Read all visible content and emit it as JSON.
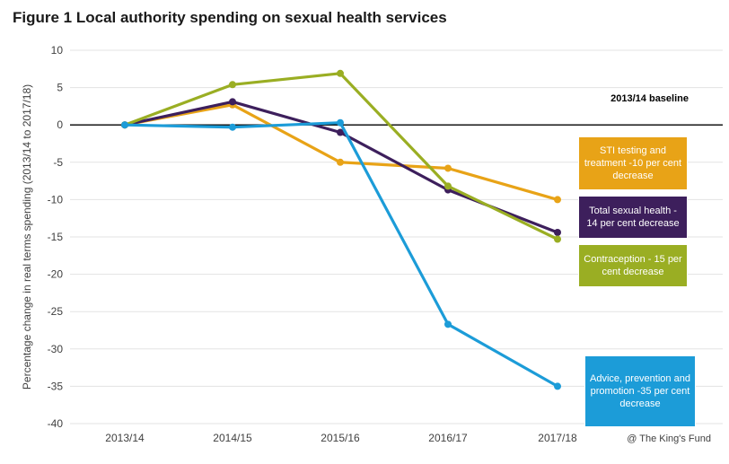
{
  "chart_data": {
    "type": "line",
    "title": "Figure 1 Local authority spending on sexual health services",
    "ylabel": "Percentage change in real terms spending (2013/14 to 2017/18)",
    "xlabel": "",
    "categories": [
      "2013/14",
      "2014/15",
      "2015/16",
      "2016/17",
      "2017/18"
    ],
    "ylim": [
      -40,
      10
    ],
    "yticks": [
      10,
      5,
      0,
      -5,
      -10,
      -15,
      -20,
      -25,
      -30,
      -35,
      -40
    ],
    "grid": "horizontal",
    "baseline_label": "2013/14 baseline",
    "series": [
      {
        "name": "STI testing and treatment -10 per cent decrease",
        "color": "#E8A317",
        "values": [
          0,
          2.7,
          -5.0,
          -5.8,
          -10.0
        ]
      },
      {
        "name": "Total sexual health -14 per cent decrease",
        "color": "#3D1F5C",
        "values": [
          0,
          3.1,
          -1.0,
          -8.7,
          -14.4
        ]
      },
      {
        "name": "Contraception - 15 per cent decrease",
        "color": "#9AAE23",
        "values": [
          0,
          5.4,
          6.9,
          -8.2,
          -15.3
        ]
      },
      {
        "name": "Advice, prevention and promotion -35 per cent decrease",
        "color": "#1C9CD8",
        "values": [
          0,
          -0.3,
          0.3,
          -26.7,
          -35.0
        ]
      }
    ],
    "legend": [
      {
        "text": "STI testing and treatment -10 per cent decrease",
        "bg": "#E8A317",
        "fg": "#ffffff"
      },
      {
        "text": "Total sexual health - 14 per cent decrease",
        "bg": "#3D1F5C",
        "fg": "#ffffff"
      },
      {
        "text": "Contraception - 15 per cent decrease",
        "bg": "#9AAE23",
        "fg": "#ffffff"
      },
      {
        "text": "Advice, prevention and promotion -35 per cent decrease",
        "bg": "#1C9CD8",
        "fg": "#ffffff"
      }
    ],
    "legend_placement": "right, beside series end points"
  },
  "credit": "@ The King's Fund"
}
